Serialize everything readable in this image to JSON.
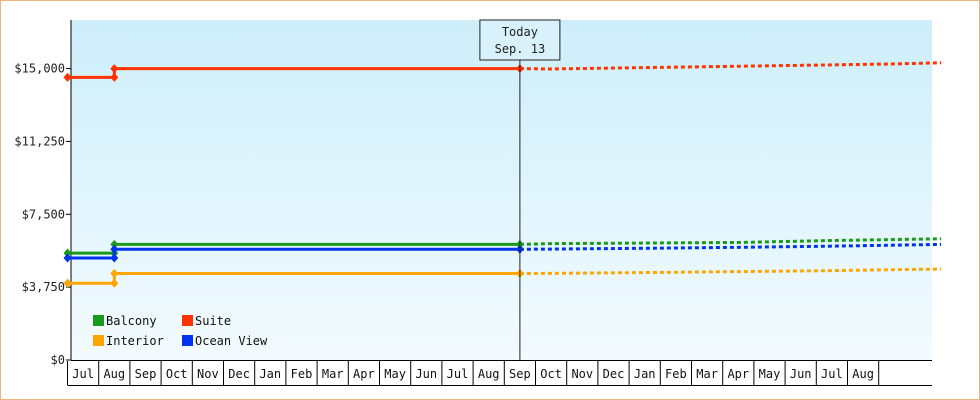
{
  "chart_data": {
    "type": "line",
    "title": "",
    "xlabel": "",
    "ylabel": "",
    "ylim": [
      0,
      17500
    ],
    "yticks": [
      {
        "value": 0,
        "label": "$0"
      },
      {
        "value": 3750,
        "label": "$3,750"
      },
      {
        "value": 7500,
        "label": "$7,500"
      },
      {
        "value": 11250,
        "label": "$11,250"
      },
      {
        "value": 15000,
        "label": "$15,000"
      }
    ],
    "months": [
      "Jul",
      "Aug",
      "Sep",
      "Oct",
      "Nov",
      "Dec",
      "Jan",
      "Feb",
      "Mar",
      "Apr",
      "May",
      "Jun",
      "Jul",
      "Aug",
      "Sep",
      "Oct",
      "Nov",
      "Dec",
      "Jan",
      "Feb",
      "Mar",
      "Apr",
      "May",
      "Jun",
      "Jul",
      "Aug"
    ],
    "today": {
      "line1": "Today",
      "line2": "Sep. 13",
      "x": 14.5
    },
    "legend": {
      "placement": "bottom-left",
      "columns": 2
    },
    "series": [
      {
        "name": "Balcony",
        "color": "#1a9a1a",
        "actual": [
          [
            0,
            5500
          ],
          [
            1.5,
            5500
          ],
          [
            1.5,
            5950
          ],
          [
            14.5,
            5950
          ]
        ],
        "forecast": [
          [
            14.5,
            5950
          ],
          [
            15.5,
            5990
          ],
          [
            18.5,
            6020
          ],
          [
            21.5,
            6050
          ],
          [
            24.5,
            6150
          ],
          [
            26.5,
            6200
          ],
          [
            28,
            6240
          ]
        ]
      },
      {
        "name": "Suite",
        "color": "#ff3300",
        "actual": [
          [
            0,
            14550
          ],
          [
            1.5,
            14550
          ],
          [
            1.5,
            15000
          ],
          [
            14.5,
            15000
          ]
        ],
        "forecast": [
          [
            14.5,
            15000
          ],
          [
            15.5,
            14980
          ],
          [
            18.5,
            15050
          ],
          [
            21.5,
            15120
          ],
          [
            24.5,
            15190
          ],
          [
            26.5,
            15240
          ],
          [
            28,
            15300
          ]
        ]
      },
      {
        "name": "Interior",
        "color": "#ffa500",
        "actual": [
          [
            0,
            3950
          ],
          [
            1.5,
            3950
          ],
          [
            1.5,
            4450
          ],
          [
            14.5,
            4450
          ]
        ],
        "forecast": [
          [
            14.5,
            4450
          ],
          [
            15.5,
            4460
          ],
          [
            18.5,
            4500
          ],
          [
            21.5,
            4550
          ],
          [
            24.5,
            4600
          ],
          [
            26.5,
            4650
          ],
          [
            28,
            4680
          ]
        ]
      },
      {
        "name": "Ocean View",
        "color": "#0033ee",
        "actual": [
          [
            0,
            5250
          ],
          [
            1.5,
            5250
          ],
          [
            1.5,
            5700
          ],
          [
            14.5,
            5700
          ]
        ],
        "forecast": [
          [
            14.5,
            5700
          ],
          [
            15.5,
            5710
          ],
          [
            18.5,
            5750
          ],
          [
            21.5,
            5800
          ],
          [
            24.5,
            5860
          ],
          [
            26.5,
            5910
          ],
          [
            28,
            5950
          ]
        ]
      }
    ]
  }
}
